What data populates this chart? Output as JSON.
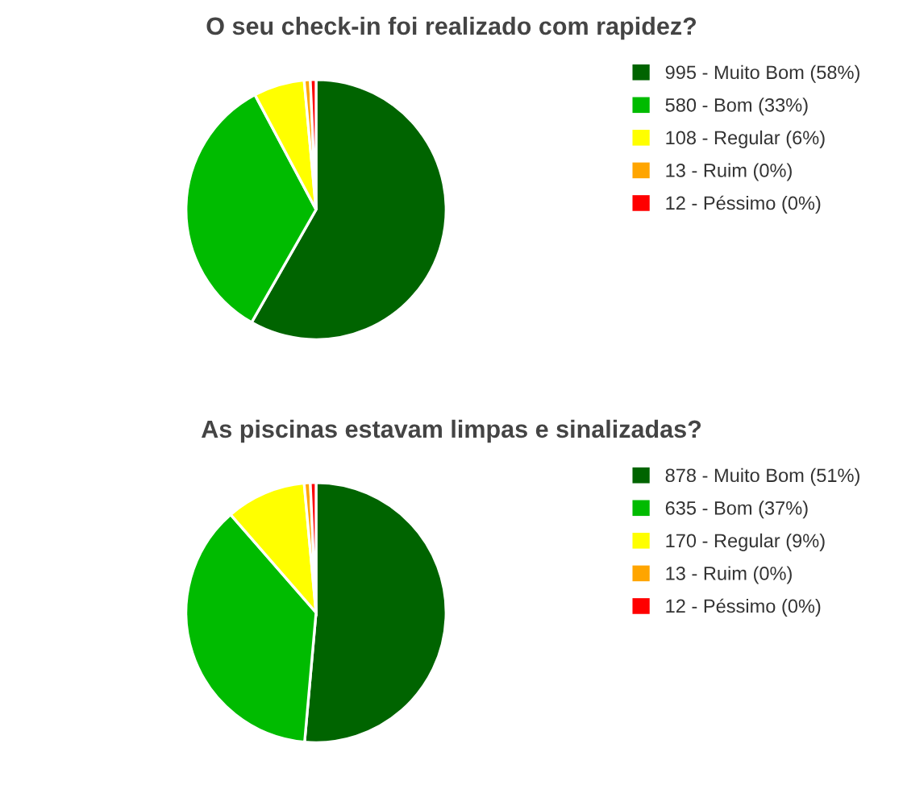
{
  "chart_data": [
    {
      "type": "pie",
      "title": "O seu check-in foi realizado com rapidez?",
      "categories": [
        "995 - Muito Bom (58%)",
        "580 - Bom (33%)",
        "108 - Regular (6%)",
        "13 - Ruim (0%)",
        "12 - Péssimo (0%)"
      ],
      "values": [
        995,
        580,
        108,
        13,
        12
      ],
      "colors": [
        "#006400",
        "#00bb00",
        "#ffff00",
        "#ffa500",
        "#ff0000"
      ],
      "legend": "right"
    },
    {
      "type": "pie",
      "title": "As piscinas estavam limpas e sinalizadas?",
      "categories": [
        "878 - Muito Bom (51%)",
        "635 - Bom (37%)",
        "170 - Regular (9%)",
        "13 - Ruim (0%)",
        "12 - Péssimo (0%)"
      ],
      "values": [
        878,
        635,
        170,
        13,
        12
      ],
      "colors": [
        "#006400",
        "#00bb00",
        "#ffff00",
        "#ffa500",
        "#ff0000"
      ],
      "legend": "right"
    }
  ]
}
